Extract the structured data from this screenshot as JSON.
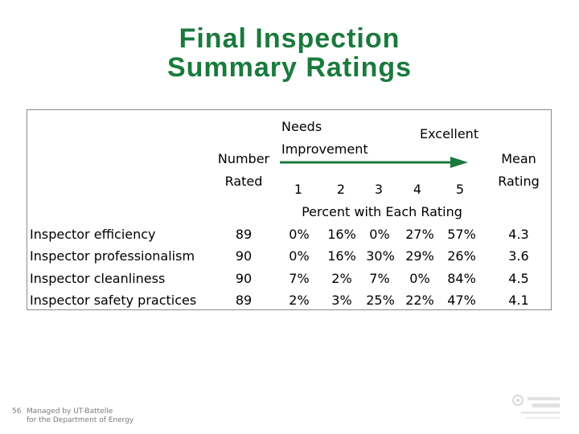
{
  "title": {
    "line1": "Final Inspection",
    "line2": "Summary Ratings"
  },
  "headers": {
    "number_rated": [
      "Number",
      "Rated"
    ],
    "needs_improvement": [
      "Needs",
      "Improvement"
    ],
    "excellent": "Excellent",
    "mean_rating": [
      "Mean",
      "Rating"
    ],
    "scale": [
      "1",
      "2",
      "3",
      "4",
      "5"
    ],
    "percent_caption": "Percent with Each Rating"
  },
  "rows": [
    {
      "label": "Inspector efficiency",
      "number": "89",
      "pcts": [
        "0%",
        "16%",
        "0%",
        "27%",
        "57%"
      ],
      "mean": "4.3"
    },
    {
      "label": "Inspector professionalism",
      "number": "90",
      "pcts": [
        "0%",
        "16%",
        "30%",
        "29%",
        "26%"
      ],
      "mean": "3.6"
    },
    {
      "label": "Inspector cleanliness",
      "number": "90",
      "pcts": [
        "7%",
        "2%",
        "7%",
        "0%",
        "84%"
      ],
      "mean": "4.5"
    },
    {
      "label": "Inspector safety practices",
      "number": "89",
      "pcts": [
        "2%",
        "3%",
        "25%",
        "22%",
        "47%"
      ],
      "mean": "4.1"
    }
  ],
  "footer": {
    "slide_number": "56",
    "managed_by": [
      "Managed by UT-Battelle",
      "for the Department of Energy"
    ]
  },
  "colors": {
    "title": "#1a7a3c",
    "arrow": "#1a7a3c"
  }
}
